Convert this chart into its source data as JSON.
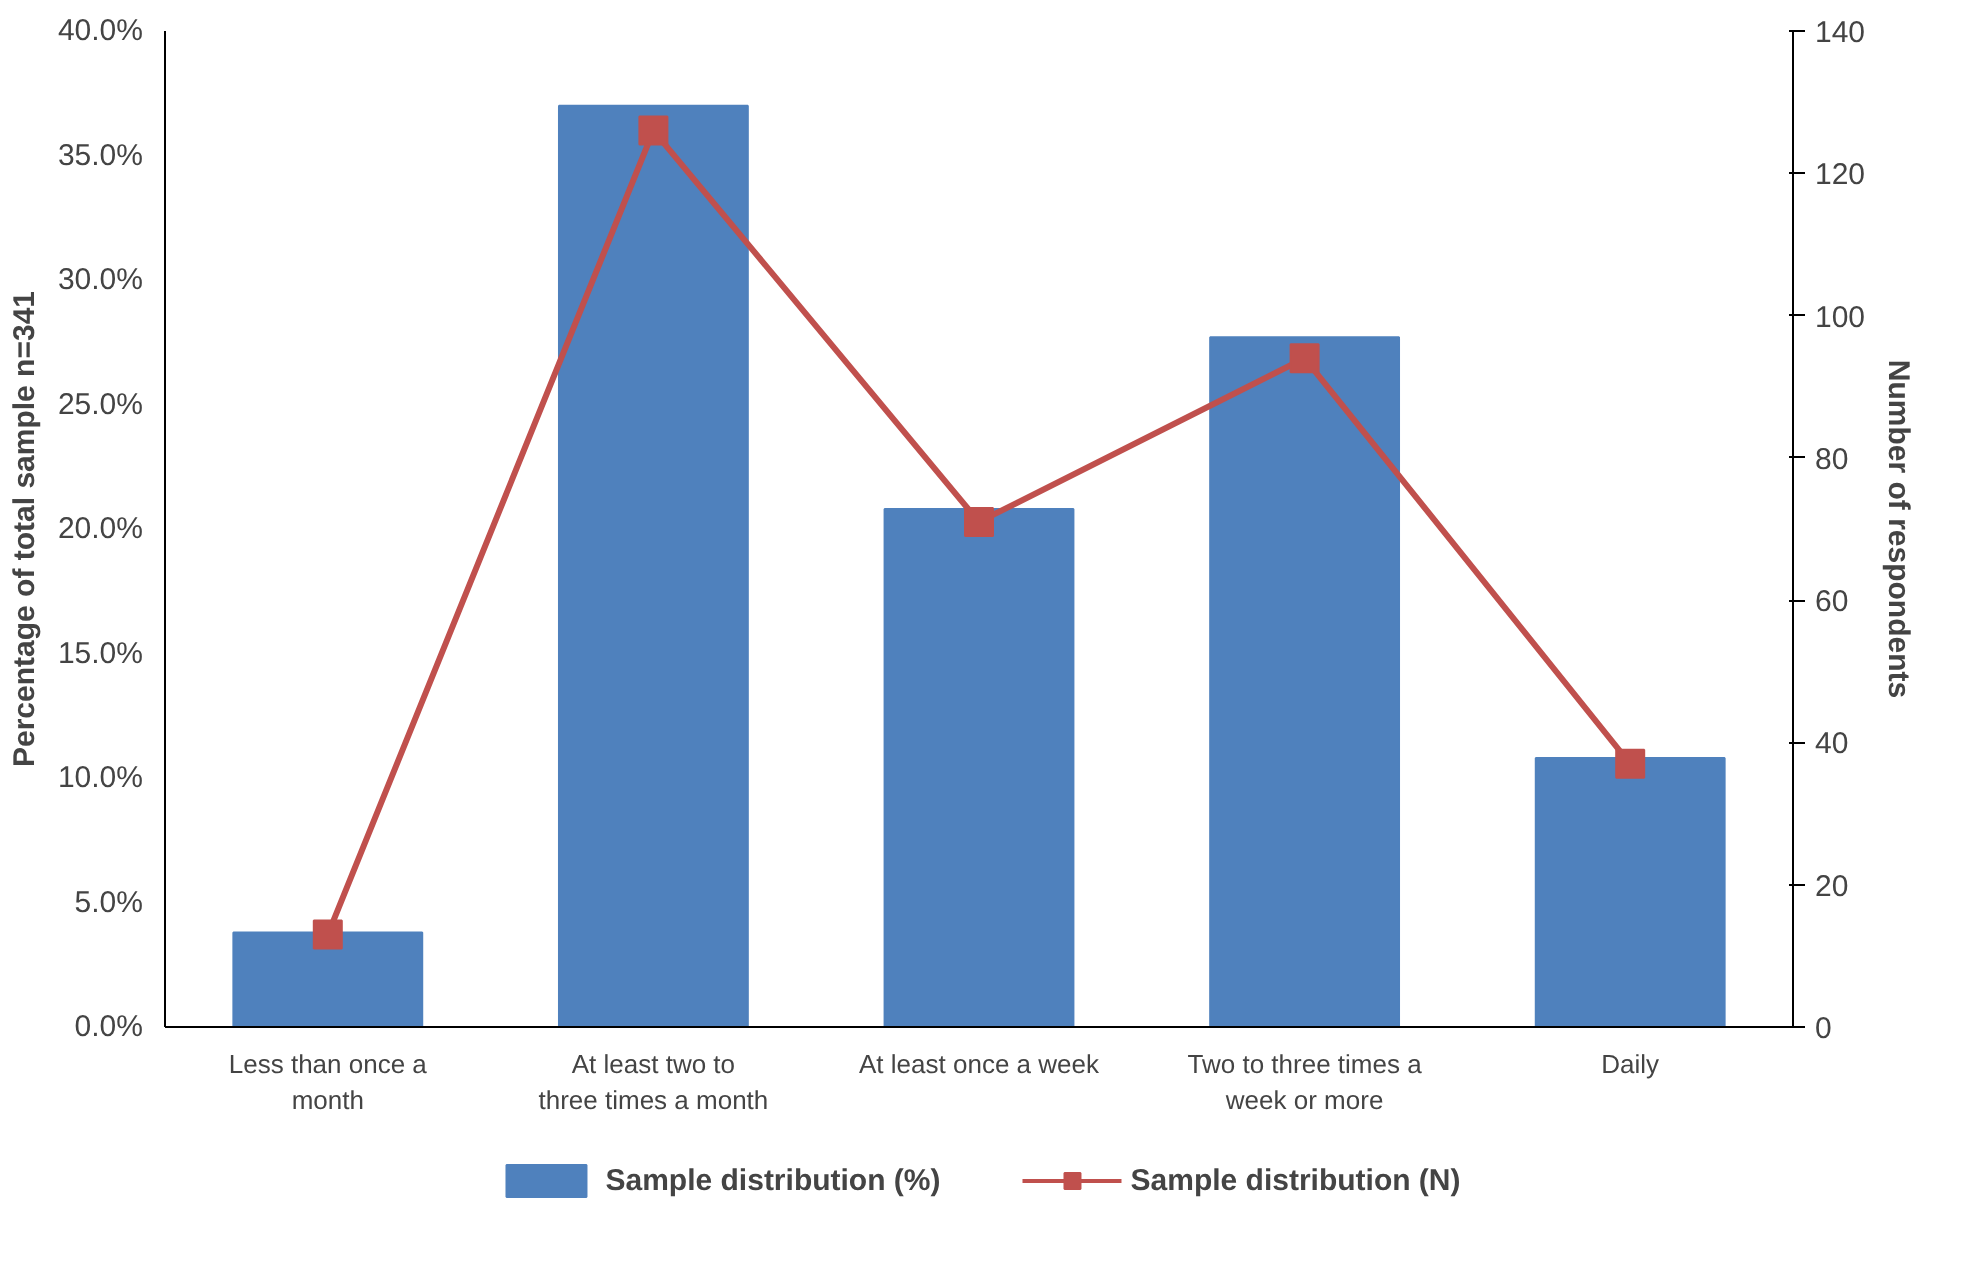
{
  "chart_data": {
    "type": "bar",
    "categories": [
      "Less than once a month",
      "At least two to three times a month",
      "At least once a week",
      "Two to three times a week or more",
      "Daily"
    ],
    "series": [
      {
        "name": "Sample distribution (%)",
        "type": "bar",
        "color": "#4f81bd",
        "values": [
          3.8,
          37.0,
          20.8,
          27.7,
          10.8
        ]
      },
      {
        "name": "Sample distribution (N)",
        "type": "line",
        "axis": "y2",
        "color": "#c0504d",
        "marker": "square",
        "values": [
          13,
          126,
          71,
          94,
          37
        ]
      }
    ],
    "ylabel": "Percentage of total sample n=341",
    "y2label": "Number of respondents",
    "ylim": [
      0,
      40
    ],
    "yticks": [
      {
        "value": 0,
        "label": "0.0%"
      },
      {
        "value": 5,
        "label": "5.0%"
      },
      {
        "value": 10,
        "label": "10.0%"
      },
      {
        "value": 15,
        "label": "15.0%"
      },
      {
        "value": 20,
        "label": "20.0%"
      },
      {
        "value": 25,
        "label": "25.0%"
      },
      {
        "value": 30,
        "label": "30.0%"
      },
      {
        "value": 35,
        "label": "35.0%"
      },
      {
        "value": 40,
        "label": "40.0%"
      }
    ],
    "y2lim": [
      0,
      140
    ],
    "y2ticks": [
      0,
      20,
      40,
      60,
      80,
      100,
      120,
      140
    ],
    "grid": false,
    "legend": "bottom"
  }
}
